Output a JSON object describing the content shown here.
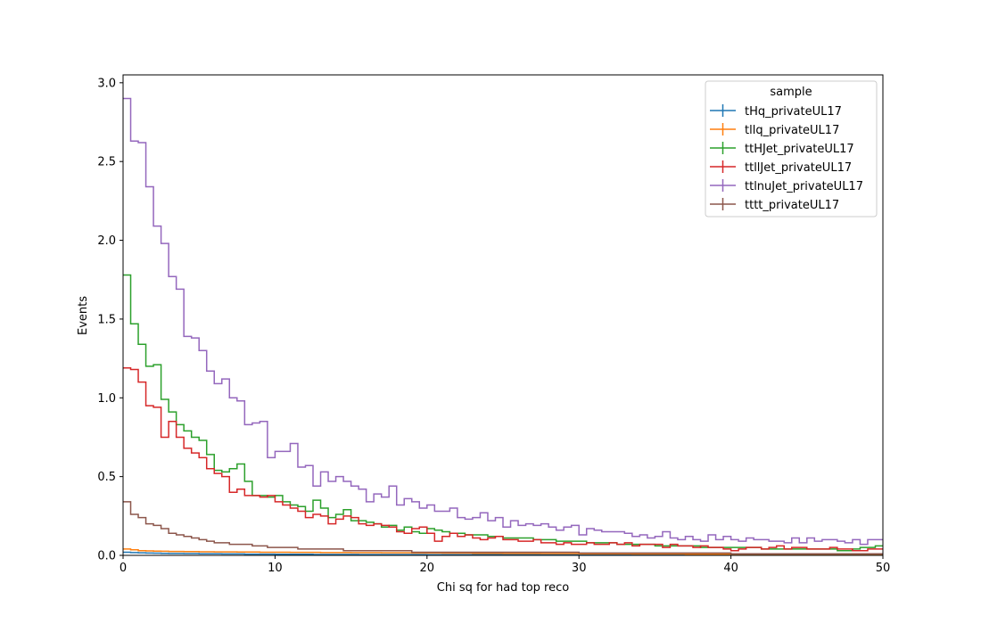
{
  "chart_data": {
    "type": "line",
    "step": true,
    "xlabel": "Chi sq for had top reco",
    "ylabel": "Events",
    "xlim": [
      0,
      50
    ],
    "ylim": [
      0,
      3.05
    ],
    "xticks": [
      0,
      10,
      20,
      30,
      40,
      50
    ],
    "xtick_labels": [
      "0",
      "10",
      "20",
      "30",
      "40",
      "50"
    ],
    "yticks": [
      0.0,
      0.5,
      1.0,
      1.5,
      2.0,
      2.5,
      3.0
    ],
    "ytick_labels": [
      "0.0",
      "0.5",
      "1.0",
      "1.5",
      "2.0",
      "2.5",
      "3.0"
    ],
    "bin_width": 0.5,
    "grid": false,
    "legend": {
      "title": "sample",
      "position": "top-right"
    },
    "series": [
      {
        "name": "tHq_privateUL17",
        "color": "#1f77b4",
        "values": [
          0.02,
          0.018,
          0.016,
          0.015,
          0.014,
          0.013,
          0.012,
          0.012,
          0.011,
          0.011,
          0.01,
          0.01,
          0.01,
          0.009,
          0.009,
          0.009,
          0.008,
          0.008,
          0.008,
          0.008,
          0.007,
          0.007,
          0.007,
          0.007,
          0.007,
          0.006,
          0.006,
          0.006,
          0.006,
          0.006,
          0.006,
          0.005,
          0.005,
          0.005,
          0.005,
          0.005,
          0.005,
          0.005,
          0.005,
          0.005,
          0.004,
          0.004,
          0.004,
          0.004,
          0.004,
          0.004,
          0.004,
          0.004,
          0.004,
          0.004,
          0.004,
          0.004,
          0.004,
          0.004,
          0.004,
          0.004,
          0.004,
          0.004,
          0.004,
          0.004,
          0.004,
          0.004,
          0.004,
          0.004,
          0.004,
          0.004,
          0.004,
          0.004,
          0.004,
          0.004,
          0.003,
          0.003,
          0.003,
          0.003,
          0.003,
          0.003,
          0.003,
          0.003,
          0.003,
          0.003,
          0.003,
          0.003,
          0.003,
          0.003,
          0.003,
          0.003,
          0.003,
          0.003,
          0.003,
          0.003,
          0.003,
          0.003,
          0.003,
          0.003,
          0.003,
          0.003,
          0.003,
          0.003,
          0.003,
          0.003
        ]
      },
      {
        "name": "tllq_privateUL17",
        "color": "#ff7f0e",
        "values": [
          0.04,
          0.035,
          0.03,
          0.028,
          0.027,
          0.026,
          0.025,
          0.025,
          0.024,
          0.024,
          0.023,
          0.023,
          0.022,
          0.022,
          0.022,
          0.021,
          0.021,
          0.021,
          0.02,
          0.02,
          0.02,
          0.02,
          0.019,
          0.019,
          0.019,
          0.019,
          0.018,
          0.018,
          0.018,
          0.018,
          0.017,
          0.017,
          0.017,
          0.017,
          0.016,
          0.016,
          0.016,
          0.016,
          0.015,
          0.015,
          0.015,
          0.015,
          0.014,
          0.014,
          0.014,
          0.014,
          0.013,
          0.013,
          0.013,
          0.013,
          0.012,
          0.012,
          0.012,
          0.012,
          0.012,
          0.011,
          0.011,
          0.011,
          0.011,
          0.011,
          0.01,
          0.01,
          0.01,
          0.01,
          0.01,
          0.01,
          0.01,
          0.009,
          0.009,
          0.009,
          0.009,
          0.009,
          0.009,
          0.009,
          0.008,
          0.008,
          0.008,
          0.008,
          0.008,
          0.008,
          0.008,
          0.008,
          0.008,
          0.008,
          0.008,
          0.008,
          0.008,
          0.008,
          0.008,
          0.008,
          0.008,
          0.008,
          0.008,
          0.008,
          0.008,
          0.008,
          0.008,
          0.008,
          0.008,
          0.008
        ]
      },
      {
        "name": "ttHJet_privateUL17",
        "color": "#2ca02c",
        "values": [
          1.78,
          1.47,
          1.34,
          1.2,
          1.21,
          0.99,
          0.91,
          0.83,
          0.79,
          0.75,
          0.73,
          0.64,
          0.54,
          0.53,
          0.55,
          0.58,
          0.47,
          0.38,
          0.38,
          0.37,
          0.38,
          0.34,
          0.32,
          0.31,
          0.28,
          0.35,
          0.3,
          0.24,
          0.26,
          0.29,
          0.22,
          0.22,
          0.21,
          0.2,
          0.18,
          0.19,
          0.16,
          0.18,
          0.15,
          0.14,
          0.17,
          0.16,
          0.15,
          0.14,
          0.14,
          0.13,
          0.13,
          0.13,
          0.12,
          0.12,
          0.11,
          0.11,
          0.11,
          0.11,
          0.1,
          0.1,
          0.1,
          0.09,
          0.09,
          0.09,
          0.09,
          0.08,
          0.08,
          0.08,
          0.08,
          0.07,
          0.07,
          0.07,
          0.07,
          0.07,
          0.06,
          0.06,
          0.06,
          0.06,
          0.06,
          0.06,
          0.05,
          0.05,
          0.05,
          0.05,
          0.05,
          0.05,
          0.05,
          0.05,
          0.04,
          0.04,
          0.04,
          0.04,
          0.04,
          0.04,
          0.04,
          0.04,
          0.04,
          0.04,
          0.03,
          0.03,
          0.04,
          0.05,
          0.05,
          0.06
        ]
      },
      {
        "name": "ttllJet_privateUL17",
        "color": "#d62728",
        "values": [
          1.19,
          1.18,
          1.1,
          0.95,
          0.94,
          0.75,
          0.85,
          0.75,
          0.68,
          0.65,
          0.62,
          0.55,
          0.52,
          0.5,
          0.4,
          0.42,
          0.38,
          0.38,
          0.37,
          0.38,
          0.34,
          0.32,
          0.3,
          0.28,
          0.24,
          0.26,
          0.25,
          0.2,
          0.23,
          0.25,
          0.24,
          0.2,
          0.19,
          0.2,
          0.19,
          0.18,
          0.15,
          0.14,
          0.17,
          0.18,
          0.14,
          0.09,
          0.12,
          0.14,
          0.12,
          0.13,
          0.11,
          0.1,
          0.11,
          0.12,
          0.1,
          0.1,
          0.09,
          0.09,
          0.1,
          0.08,
          0.08,
          0.07,
          0.08,
          0.07,
          0.07,
          0.08,
          0.07,
          0.07,
          0.08,
          0.07,
          0.08,
          0.06,
          0.07,
          0.07,
          0.07,
          0.05,
          0.07,
          0.06,
          0.06,
          0.05,
          0.06,
          0.05,
          0.05,
          0.04,
          0.03,
          0.04,
          0.05,
          0.05,
          0.04,
          0.05,
          0.06,
          0.04,
          0.05,
          0.05,
          0.04,
          0.04,
          0.04,
          0.05,
          0.04,
          0.04,
          0.03,
          0.03,
          0.04,
          0.04
        ]
      },
      {
        "name": "ttlnuJet_privateUL17",
        "color": "#9467bd",
        "values": [
          2.9,
          2.63,
          2.62,
          2.34,
          2.09,
          1.98,
          1.77,
          1.69,
          1.39,
          1.38,
          1.3,
          1.17,
          1.09,
          1.12,
          1.0,
          0.98,
          0.83,
          0.84,
          0.85,
          0.62,
          0.66,
          0.66,
          0.71,
          0.56,
          0.57,
          0.44,
          0.53,
          0.47,
          0.5,
          0.47,
          0.44,
          0.42,
          0.34,
          0.39,
          0.37,
          0.44,
          0.32,
          0.36,
          0.34,
          0.3,
          0.32,
          0.28,
          0.28,
          0.3,
          0.24,
          0.23,
          0.24,
          0.27,
          0.22,
          0.24,
          0.18,
          0.22,
          0.19,
          0.2,
          0.19,
          0.2,
          0.18,
          0.16,
          0.18,
          0.19,
          0.13,
          0.17,
          0.16,
          0.15,
          0.15,
          0.15,
          0.14,
          0.12,
          0.13,
          0.11,
          0.12,
          0.15,
          0.11,
          0.1,
          0.12,
          0.1,
          0.09,
          0.13,
          0.1,
          0.12,
          0.1,
          0.09,
          0.11,
          0.1,
          0.1,
          0.09,
          0.09,
          0.08,
          0.11,
          0.08,
          0.11,
          0.09,
          0.1,
          0.1,
          0.09,
          0.08,
          0.1,
          0.07,
          0.1,
          0.1
        ]
      },
      {
        "name": "tttt_privateUL17",
        "color": "#8c564b",
        "values": [
          0.34,
          0.26,
          0.24,
          0.2,
          0.19,
          0.17,
          0.14,
          0.13,
          0.12,
          0.11,
          0.1,
          0.09,
          0.08,
          0.08,
          0.07,
          0.07,
          0.07,
          0.06,
          0.06,
          0.05,
          0.05,
          0.05,
          0.05,
          0.04,
          0.04,
          0.04,
          0.04,
          0.04,
          0.04,
          0.03,
          0.03,
          0.03,
          0.03,
          0.03,
          0.03,
          0.03,
          0.03,
          0.03,
          0.02,
          0.02,
          0.02,
          0.02,
          0.02,
          0.02,
          0.02,
          0.02,
          0.02,
          0.02,
          0.02,
          0.02,
          0.02,
          0.02,
          0.02,
          0.02,
          0.02,
          0.02,
          0.02,
          0.02,
          0.02,
          0.02,
          0.015,
          0.015,
          0.015,
          0.015,
          0.015,
          0.015,
          0.015,
          0.015,
          0.015,
          0.015,
          0.015,
          0.015,
          0.015,
          0.015,
          0.015,
          0.015,
          0.015,
          0.015,
          0.015,
          0.015,
          0.01,
          0.01,
          0.01,
          0.01,
          0.01,
          0.01,
          0.01,
          0.01,
          0.01,
          0.01,
          0.01,
          0.01,
          0.01,
          0.01,
          0.01,
          0.01,
          0.01,
          0.01,
          0.01,
          0.01
        ]
      }
    ]
  }
}
